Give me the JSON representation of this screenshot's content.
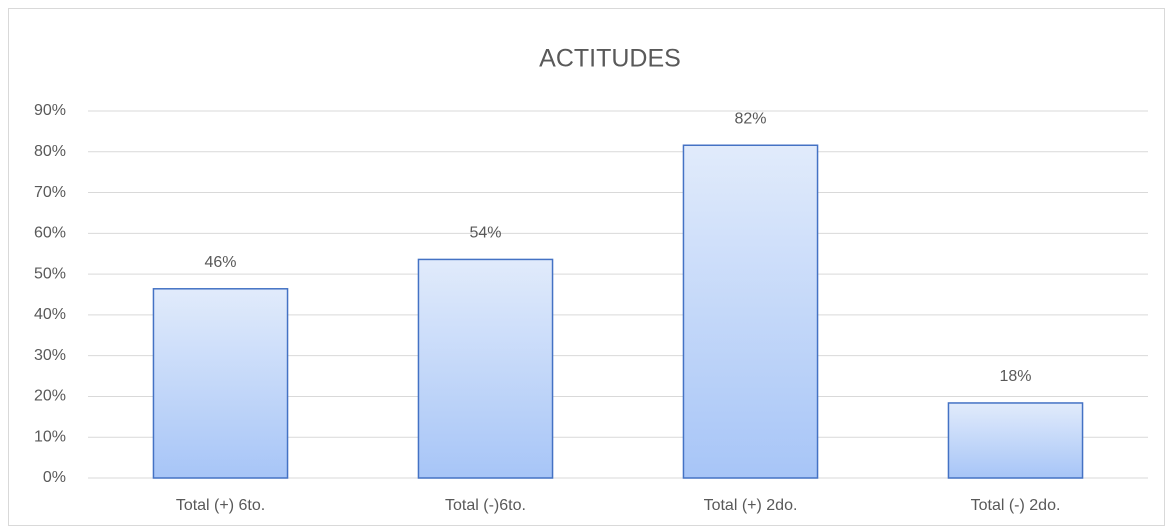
{
  "chart_data": {
    "type": "bar",
    "title": "ACTITUDES",
    "categories": [
      "Total (+) 6to.",
      "Total (-)6to.",
      "Total (+) 2do.",
      "Total (-) 2do."
    ],
    "values": [
      46.4,
      53.6,
      81.6,
      18.4
    ],
    "value_labels": [
      "46%",
      "54%",
      "82%",
      "18%"
    ],
    "color": "#4472c4",
    "ylim": [
      0,
      90
    ],
    "yticks": [
      {
        "value": 0,
        "label": "0%"
      },
      {
        "value": 10,
        "label": "10%"
      },
      {
        "value": 20,
        "label": "20%"
      },
      {
        "value": 30,
        "label": "30%"
      },
      {
        "value": 40,
        "label": "40%"
      },
      {
        "value": 50,
        "label": "50%"
      },
      {
        "value": 60,
        "label": "60%"
      },
      {
        "value": 70,
        "label": "70%"
      },
      {
        "value": 80,
        "label": "80%"
      },
      {
        "value": 90,
        "label": "90%"
      }
    ],
    "grid": true
  }
}
